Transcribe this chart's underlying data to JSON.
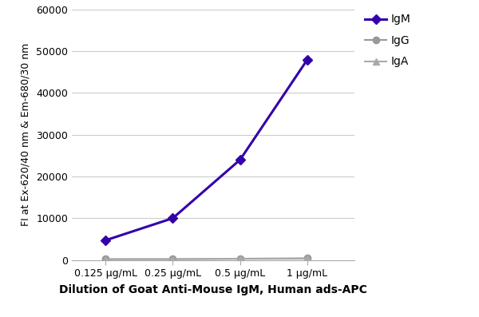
{
  "x_labels": [
    "0.125 μg/mL",
    "0.25 μg/mL",
    "0.5 μg/mL",
    "1 μg/mL"
  ],
  "x_values": [
    1,
    2,
    3,
    4
  ],
  "IgM": [
    4700,
    10000,
    24000,
    48000
  ],
  "IgG": [
    200,
    200,
    300,
    400
  ],
  "IgA": [
    150,
    180,
    250,
    300
  ],
  "IgM_color": "#3300aa",
  "IgG_color": "#999999",
  "IgA_color": "#aaaaaa",
  "IgM_marker": "D",
  "IgG_marker": "o",
  "IgA_marker": "^",
  "ylabel": "FI at Ex-620/40 nm & Em-680/30 nm",
  "xlabel": "Dilution of Goat Anti-Mouse IgM, Human ads-APC",
  "ylim": [
    0,
    60000
  ],
  "yticks": [
    0,
    10000,
    20000,
    30000,
    40000,
    50000,
    60000
  ],
  "background_color": "#ffffff",
  "grid_color": "#cccccc",
  "legend_labels": [
    "IgM",
    "IgG",
    "IgA"
  ]
}
